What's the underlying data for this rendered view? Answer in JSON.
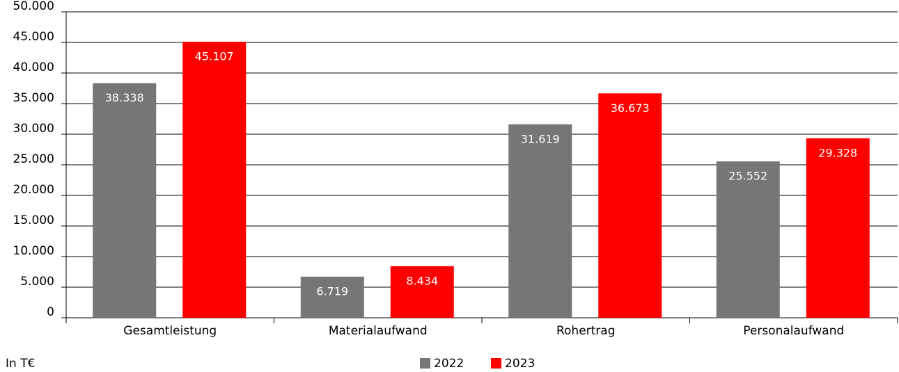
{
  "chart_data": {
    "type": "bar",
    "unit_label": "In T€",
    "categories": [
      "Gesamtleistung",
      "Materialaufwand",
      "Rohertrag",
      "Personalaufwand"
    ],
    "series": [
      {
        "name": "2022",
        "color": "#767676",
        "values": [
          38338,
          6719,
          31619,
          25552
        ],
        "value_labels": [
          "38.338",
          "6.719",
          "31.619",
          "25.552"
        ]
      },
      {
        "name": "2023",
        "color": "#ff0000",
        "values": [
          45107,
          8434,
          36673,
          29328
        ],
        "value_labels": [
          "45.107",
          "8.434",
          "36.673",
          "29.328"
        ]
      }
    ],
    "ylim": [
      0,
      50000
    ],
    "yticks": [
      0,
      {
        "value": 5000,
        "label": "5.000"
      },
      {
        "value": 10000,
        "label": "10.000"
      },
      {
        "value": 15000,
        "label": "15.000"
      },
      {
        "value": 20000,
        "label": "20.000"
      },
      {
        "value": 25000,
        "label": "25.000"
      },
      {
        "value": 30000,
        "label": "30.000"
      },
      {
        "value": 35000,
        "label": "35.000"
      },
      {
        "value": 40000,
        "label": "40.000"
      },
      {
        "value": 45000,
        "label": "45.000"
      },
      {
        "value": 50000,
        "label": "50.000"
      }
    ],
    "grid": true
  }
}
